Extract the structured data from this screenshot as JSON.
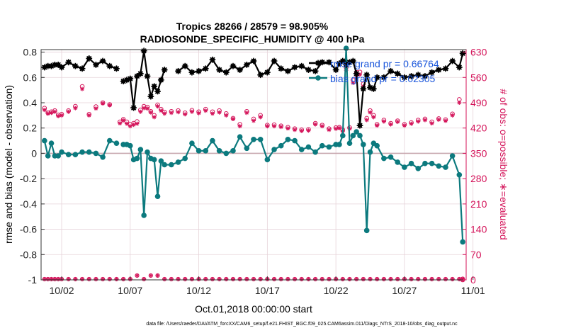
{
  "chart_data": {
    "type": "line",
    "title": "Tropics 28266 / 28579 = 98.905%",
    "subtitle": "RADIOSONDE_SPECIFIC_HUMIDITY @ 400 hPa",
    "xlabel": "Oct.01,2018 00:00:00 start",
    "ylabel": "rmse and bias (model - observation)",
    "y2label": "# of obs: o=possible; ∗=evaluated",
    "footer": "data file: /Users/raeder/DAI/ATM_forcXX/CAM6_setup/f.e21.FHIST_BGC.f09_025.CAM6assim.011/Diags_NTrS_2018-10/obs_diag_output.nc",
    "xlim": [
      0.5,
      31.5
    ],
    "ylim": [
      -1,
      0.82
    ],
    "y2lim": [
      0,
      637
    ],
    "x_ticks": [
      2,
      7,
      12,
      17,
      22,
      27,
      32
    ],
    "x_tick_labels": [
      "10/02",
      "10/07",
      "10/12",
      "10/17",
      "10/22",
      "10/27",
      "11/01"
    ],
    "y_ticks": [
      -1,
      -0.8,
      -0.6,
      -0.4,
      -0.2,
      0,
      0.2,
      0.4,
      0.6,
      0.8
    ],
    "y_tick_labels": [
      "-1",
      "-0.8",
      "-0.6",
      "-0.4",
      "-0.2",
      "0",
      "0.2",
      "0.4",
      "0.6",
      "0.8"
    ],
    "y2_ticks": [
      0,
      70,
      140,
      210,
      280,
      350,
      420,
      490,
      560,
      630
    ],
    "y2_tick_labels": [
      "0",
      "70",
      "140",
      "210",
      "280",
      "350",
      "420",
      "490",
      "560",
      "630"
    ],
    "grid": true,
    "legend_position": "top-right",
    "colors": {
      "rmse": "#000000",
      "bias": "#0c7a7e",
      "obs": "#d4145a",
      "zero_line": "#c9a9b0",
      "grid": "#e6d3d9"
    },
    "series": [
      {
        "name": "rmse grand pr = 0.66764",
        "x": [
          0.75,
          1,
          1.25,
          1.5,
          1.75,
          2,
          2.5,
          3,
          3.5,
          4,
          4.5,
          5,
          5.5,
          6,
          6.25,
          6.5,
          6.75,
          7,
          7.25,
          7.5,
          7.75,
          8,
          8.25,
          8.5,
          8.75,
          9,
          9.25,
          9.5,
          10,
          10.5,
          11,
          11.5,
          12,
          12.5,
          13,
          13.5,
          14,
          14.5,
          15,
          15.5,
          16,
          16.5,
          17,
          17.5,
          18,
          18.5,
          19,
          19.5,
          20,
          20.5,
          21,
          21.5,
          22,
          22.25,
          22.5,
          22.75,
          23,
          23.25,
          23.5,
          23.75,
          24,
          24.25,
          24.5,
          24.75,
          25,
          25.5,
          26,
          26.5,
          27,
          27.5,
          28,
          28.5,
          29,
          29.5,
          30,
          30.5,
          31,
          31.25
        ],
        "y": [
          0.68,
          0.69,
          0.69,
          0.7,
          0.7,
          0.68,
          0.72,
          0.69,
          0.67,
          0.75,
          0.7,
          0.73,
          0.69,
          0.67,
          null,
          0.57,
          0.58,
          0.59,
          0.36,
          0.61,
          0.63,
          0.81,
          0.61,
          0.45,
          0.53,
          0.49,
          0.58,
          0.66,
          null,
          0.65,
          0.69,
          0.64,
          0.65,
          0.67,
          0.74,
          0.66,
          0.64,
          0.69,
          0.66,
          0.7,
          0.73,
          0.62,
          0.64,
          0.73,
          0.67,
          0.65,
          0.68,
          0.69,
          0.66,
          0.65,
          0.72,
          0.72,
          0.66,
          0.71,
          0.73,
          0.7,
          0.72,
          0.73,
          0.63,
          0.22,
          0.51,
          0.62,
          0.52,
          0.51,
          0.6,
          0.6,
          0.65,
          0.63,
          0.6,
          0.61,
          0.62,
          0.61,
          0.64,
          0.66,
          0.67,
          0.73,
          0.68,
          0.79
        ]
      },
      {
        "name": "bias grand pr = 0.02305",
        "x": [
          0.75,
          1,
          1.25,
          1.5,
          1.75,
          2,
          2.5,
          3,
          3.5,
          4,
          4.5,
          5,
          5.5,
          6,
          6.25,
          6.5,
          6.75,
          7,
          7.25,
          7.5,
          7.75,
          8,
          8.25,
          8.5,
          8.75,
          9,
          9.25,
          9.5,
          10,
          10.5,
          11,
          11.5,
          12,
          12.5,
          13,
          13.5,
          14,
          14.5,
          15,
          15.5,
          16,
          16.5,
          17,
          17.5,
          18,
          18.5,
          19,
          19.5,
          20,
          20.5,
          21,
          21.5,
          22,
          22.25,
          22.5,
          22.75,
          23,
          23.25,
          23.5,
          23.75,
          24,
          24.25,
          24.5,
          24.75,
          25,
          25.5,
          26,
          26.5,
          27,
          27.5,
          28,
          28.5,
          29,
          29.5,
          30,
          30.5,
          31,
          31.25
        ],
        "y": [
          0.1,
          -0.02,
          0.08,
          -0.02,
          -0.02,
          0.01,
          -0.01,
          -0.01,
          0.01,
          0.01,
          0.0,
          -0.03,
          0.1,
          0.08,
          null,
          0.07,
          0.07,
          0.06,
          -0.05,
          -0.04,
          0.03,
          -0.49,
          0.01,
          -0.04,
          -0.05,
          -0.34,
          -0.06,
          -0.09,
          -0.09,
          -0.07,
          -0.04,
          0.08,
          0.02,
          0.02,
          0.1,
          0.02,
          0.0,
          0.02,
          0.13,
          0.04,
          0.11,
          0.11,
          -0.05,
          0.03,
          0.06,
          0.11,
          0.1,
          0.03,
          0.05,
          0.01,
          0.06,
          0.05,
          0.07,
          0.07,
          0.14,
          0.83,
          0.08,
          0.14,
          0.17,
          0.14,
          0.07,
          -0.61,
          0.01,
          0.08,
          0.06,
          -0.04,
          -0.03,
          -0.07,
          -0.11,
          -0.08,
          -0.12,
          -0.08,
          -0.08,
          -0.1,
          -0.11,
          -0.02,
          -0.17,
          -0.7
        ]
      },
      {
        "name": "obs possible (o)",
        "axis": "right",
        "x": [
          0.75,
          1,
          1.25,
          1.5,
          1.75,
          2,
          2.5,
          3,
          3.5,
          4,
          4.5,
          5,
          5.5,
          6,
          6.25,
          6.5,
          6.75,
          7,
          7.25,
          7.5,
          7.75,
          8,
          8.25,
          8.5,
          8.75,
          9,
          9.25,
          9.5,
          10,
          10.5,
          11,
          11.5,
          12,
          12.5,
          13,
          13.5,
          14,
          14.5,
          15,
          15.5,
          16,
          16.5,
          17,
          17.5,
          18,
          18.5,
          19,
          19.5,
          20,
          20.5,
          21,
          21.5,
          22,
          22.25,
          22.5,
          22.75,
          23,
          23.25,
          23.5,
          23.75,
          24,
          24.25,
          24.5,
          24.75,
          25,
          25.5,
          26,
          26.5,
          27,
          27.5,
          28,
          28.5,
          29,
          29.5,
          30,
          30.5,
          31,
          31.25
        ],
        "y": [
          475,
          462,
          465,
          468,
          456,
          458,
          468,
          480,
          535,
          458,
          479,
          490,
          485,
          null,
          437,
          444,
          437,
          430,
          433,
          438,
          470,
          480,
          478,
          466,
          455,
          484,
          472,
          464,
          466,
          468,
          462,
          469,
          465,
          472,
          465,
          468,
          460,
          447,
          430,
          466,
          445,
          455,
          428,
          429,
          426,
          422,
          418,
          415,
          416,
          433,
          428,
          418,
          421,
          422,
          415,
          588,
          421,
          553,
          574,
          575,
          542,
          447,
          468,
          455,
          430,
          442,
          433,
          440,
          430,
          435,
          442,
          445,
          437,
          446,
          443,
          459,
          499,
          0
        ]
      },
      {
        "name": "obs evaluated (*)",
        "axis": "right",
        "x": [
          0.75,
          1,
          1.25,
          1.5,
          1.75,
          2,
          2.5,
          3,
          3.5,
          4,
          4.5,
          5,
          5.5,
          6,
          6.25,
          6.5,
          6.75,
          7,
          7.25,
          7.5,
          7.75,
          8,
          8.25,
          8.5,
          8.75,
          9,
          9.25,
          9.5,
          10,
          10.5,
          11,
          11.5,
          12,
          12.5,
          13,
          13.5,
          14,
          14.5,
          15,
          15.5,
          16,
          16.5,
          17,
          17.5,
          18,
          18.5,
          19,
          19.5,
          20,
          20.5,
          21,
          21.5,
          22,
          22.25,
          22.5,
          22.75,
          23,
          23.25,
          23.5,
          23.75,
          24,
          24.25,
          24.5,
          24.75,
          25,
          25.5,
          26,
          26.5,
          27,
          27.5,
          28,
          28.5,
          29,
          29.5,
          30,
          30.5,
          31,
          31.25
        ],
        "y": [
          470,
          460,
          462,
          465,
          453,
          455,
          465,
          475,
          528,
          455,
          474,
          488,
          483,
          null,
          433,
          441,
          432,
          425,
          429,
          432,
          465,
          475,
          474,
          463,
          450,
          480,
          468,
          460,
          462,
          464,
          458,
          465,
          461,
          468,
          460,
          463,
          455,
          445,
          425,
          462,
          440,
          450,
          425,
          425,
          423,
          419,
          415,
          412,
          413,
          430,
          425,
          415,
          418,
          420,
          411,
          580,
          418,
          545,
          566,
          568,
          535,
          442,
          463,
          450,
          427,
          438,
          430,
          437,
          427,
          432,
          438,
          442,
          433,
          443,
          440,
          455,
          490,
          0
        ]
      },
      {
        "name": "obs possible zero-level",
        "axis": "right",
        "x": [
          0.75,
          1,
          1.25,
          1.5,
          1.75,
          2,
          2.5,
          3,
          3.5,
          4,
          4.5,
          5,
          5.5,
          6,
          6.5,
          7,
          7.5,
          8,
          8.5,
          9,
          9.5,
          10,
          10.5,
          11,
          11.5,
          12,
          12.5,
          13,
          13.5,
          14,
          14.5,
          15,
          15.5,
          16,
          16.5,
          17,
          17.5,
          18,
          18.5,
          19,
          19.5,
          20,
          20.5,
          21,
          21.5,
          22,
          22.5,
          23,
          23.5,
          24,
          24.5,
          25,
          25.5,
          26,
          26.5,
          27,
          27.5,
          28,
          28.5,
          29,
          29.5,
          30,
          30.5,
          31,
          31.25
        ],
        "y": [
          2,
          2,
          2,
          2,
          2,
          2,
          2,
          2,
          2,
          2,
          2,
          2,
          2,
          2,
          2,
          2,
          12,
          2,
          12,
          12,
          2,
          2,
          2,
          2,
          2,
          2,
          2,
          2,
          2,
          2,
          2,
          2,
          2,
          2,
          2,
          2,
          2,
          2,
          2,
          2,
          2,
          2,
          2,
          2,
          2,
          2,
          2,
          2,
          2,
          2,
          2,
          2,
          2,
          2,
          2,
          2,
          2,
          2,
          2,
          2,
          2,
          2,
          2,
          2,
          3
        ]
      }
    ]
  }
}
